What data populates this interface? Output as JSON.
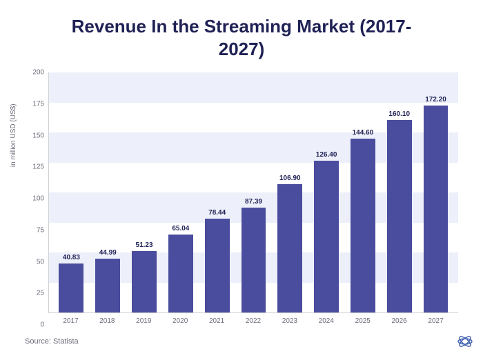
{
  "chart": {
    "type": "bar",
    "title": "Revenue In the Streaming Market (2017-2027)",
    "title_color": "#1f2155",
    "title_fontsize": 26,
    "y_label": "in million USD (US$)",
    "y_label_fontsize": 10,
    "label_color": "#6b6b7a",
    "tick_fontsize": 10,
    "value_label_fontsize": 10,
    "value_label_color": "#1f2155",
    "ymin": 0,
    "ymax": 200,
    "ytick_step": 25,
    "yticks": [
      0,
      25,
      50,
      75,
      100,
      125,
      150,
      175,
      200
    ],
    "categories": [
      "2017",
      "2018",
      "2019",
      "2020",
      "2021",
      "2022",
      "2023",
      "2024",
      "2025",
      "2026",
      "2027"
    ],
    "values": [
      40.83,
      44.99,
      51.23,
      65.04,
      78.44,
      87.39,
      106.9,
      126.4,
      144.6,
      160.1,
      172.2
    ],
    "value_labels": [
      "40.83",
      "44.99",
      "51.23",
      "65.04",
      "78.44",
      "87.39",
      "106.90",
      "126.40",
      "144.60",
      "160.10",
      "172.20"
    ],
    "bar_color": "#4a4c9d",
    "bar_width": 0.68,
    "background_color": "#ffffff",
    "band_color": "#edf0fa",
    "axis_line_color": "#d0d0d4"
  },
  "source": "Source: Statista",
  "logo_color": "#3f5fb0"
}
